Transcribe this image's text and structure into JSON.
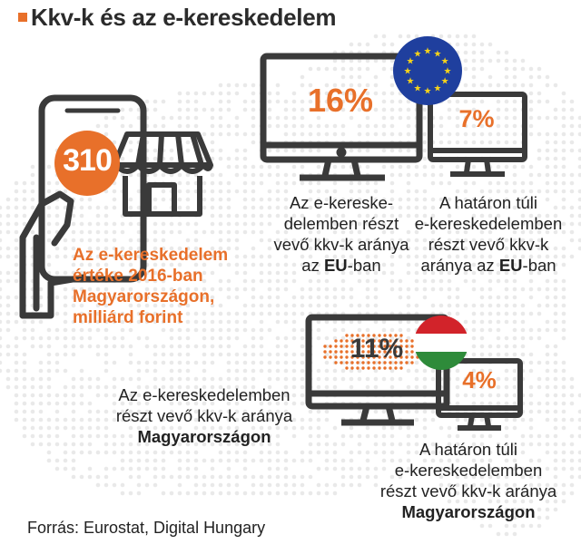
{
  "title": "Kkv-k és az e-kereskedelem",
  "colors": {
    "accent": "#e8702a",
    "outline": "#3a3a3a",
    "eu_blue": "#1f3f9e",
    "eu_star": "#f5d21a",
    "hu_red": "#d2232a",
    "hu_green": "#2e8b3a"
  },
  "icons": {
    "eu": "eu-flag-icon",
    "hu": "hungarian-flag-icon",
    "shop": "storefront-icon",
    "hand_phone": "hand-holding-phone-icon",
    "monitor": "monitor-icon"
  },
  "hungary": {
    "value": "310",
    "caption_lines": [
      "Az e-kereskedelem",
      "értéke 2016-ban",
      "Magyarországon,",
      "milliárd forint"
    ]
  },
  "eu_stats": {
    "big": {
      "value": "16%",
      "line1": "Az e-kereske-",
      "line2": "delemben részt",
      "line3": "vevő kkv-k aránya",
      "line4_pre": "az ",
      "line4_bold": "EU",
      "line4_post": "-ban"
    },
    "small": {
      "value": "7%",
      "line1": "A határon túli",
      "line2": "e-kereskedelemben",
      "line3": "részt vevő kkv-k",
      "line4_pre": "aránya az ",
      "line4_bold": "EU",
      "line4_post": "-ban"
    }
  },
  "hu_stats": {
    "big": {
      "value": "11%",
      "line1": "Az e-kereskedelemben",
      "line2": "részt vevő kkv-k aránya",
      "line3_bold": "Magyarországon"
    },
    "small": {
      "value": "4%",
      "line1": "A határon túli",
      "line2": "e-kereskedelemben",
      "line3": "részt vevő kkv-k aránya",
      "line4_bold": "Magyarországon"
    }
  },
  "source": "Forrás: Eurostat, Digital Hungary"
}
